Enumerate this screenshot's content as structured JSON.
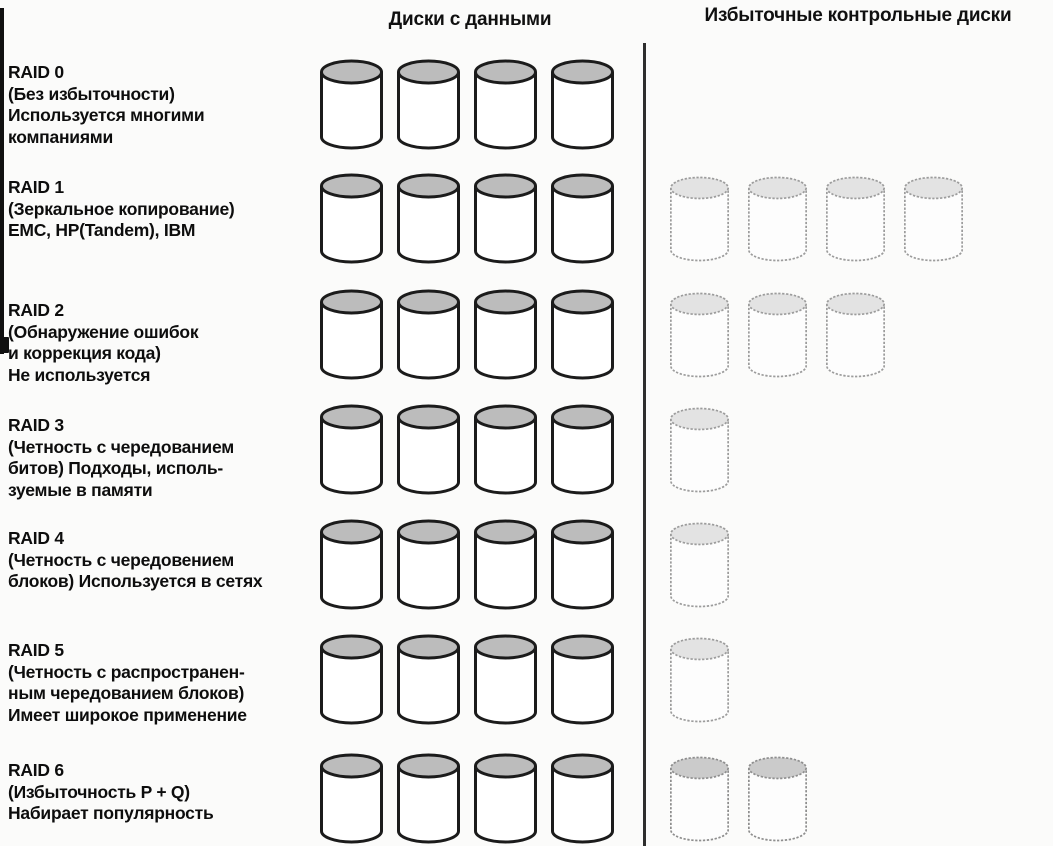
{
  "columns": {
    "data_header": "Диски с данными",
    "redundant_header": "Избыточные контрольные диски"
  },
  "rows": [
    {
      "name": "RAID 0",
      "description_lines": [
        "(Без избыточности)",
        "Используется многими",
        "компаниями"
      ],
      "data_disks": 4,
      "redundant_disks": 0,
      "redundant_style": "light"
    },
    {
      "name": "RAID 1",
      "description_lines": [
        "(Зеркальное копирование)",
        "EMC, HP(Tandem), IBM"
      ],
      "data_disks": 4,
      "redundant_disks": 4,
      "redundant_style": "light"
    },
    {
      "name": "RAID 2",
      "description_lines": [
        "(Обнаружение ошибок",
        "и коррекция кода)",
        "Не используется"
      ],
      "data_disks": 4,
      "redundant_disks": 3,
      "redundant_style": "light"
    },
    {
      "name": "RAID 3",
      "description_lines": [
        "(Четность с чередованием",
        "битов) Подходы, исполь-",
        "зуемые в памяти"
      ],
      "data_disks": 4,
      "redundant_disks": 1,
      "redundant_style": "light"
    },
    {
      "name": "RAID 4",
      "description_lines": [
        "(Четность с чередовением",
        "блоков) Используется в сетях"
      ],
      "data_disks": 4,
      "redundant_disks": 1,
      "redundant_style": "light"
    },
    {
      "name": "RAID 5",
      "description_lines": [
        "(Четность с распространен-",
        "ным чередованием блоков)",
        "Имеет широкое применение"
      ],
      "data_disks": 4,
      "redundant_disks": 1,
      "redundant_style": "light"
    },
    {
      "name": "RAID 6",
      "description_lines": [
        "(Избыточность P + Q)",
        "Набирает популярность"
      ],
      "data_disks": 4,
      "redundant_disks": 2,
      "redundant_style": "dark"
    }
  ],
  "disk_styles": {
    "data": {
      "outline": "#1b1b1b",
      "top_fill": "#bcbcbc",
      "body_fill": "#ffffff"
    },
    "redundant": {
      "outline": "#9c9c9c",
      "top_fill": "#e3e3e3",
      "body_fill": "#fdfdfd"
    },
    "redundant_dark": {
      "outline": "#8e8e8e",
      "top_fill": "#cbcbcb",
      "body_fill": "#fdfdfd"
    }
  }
}
